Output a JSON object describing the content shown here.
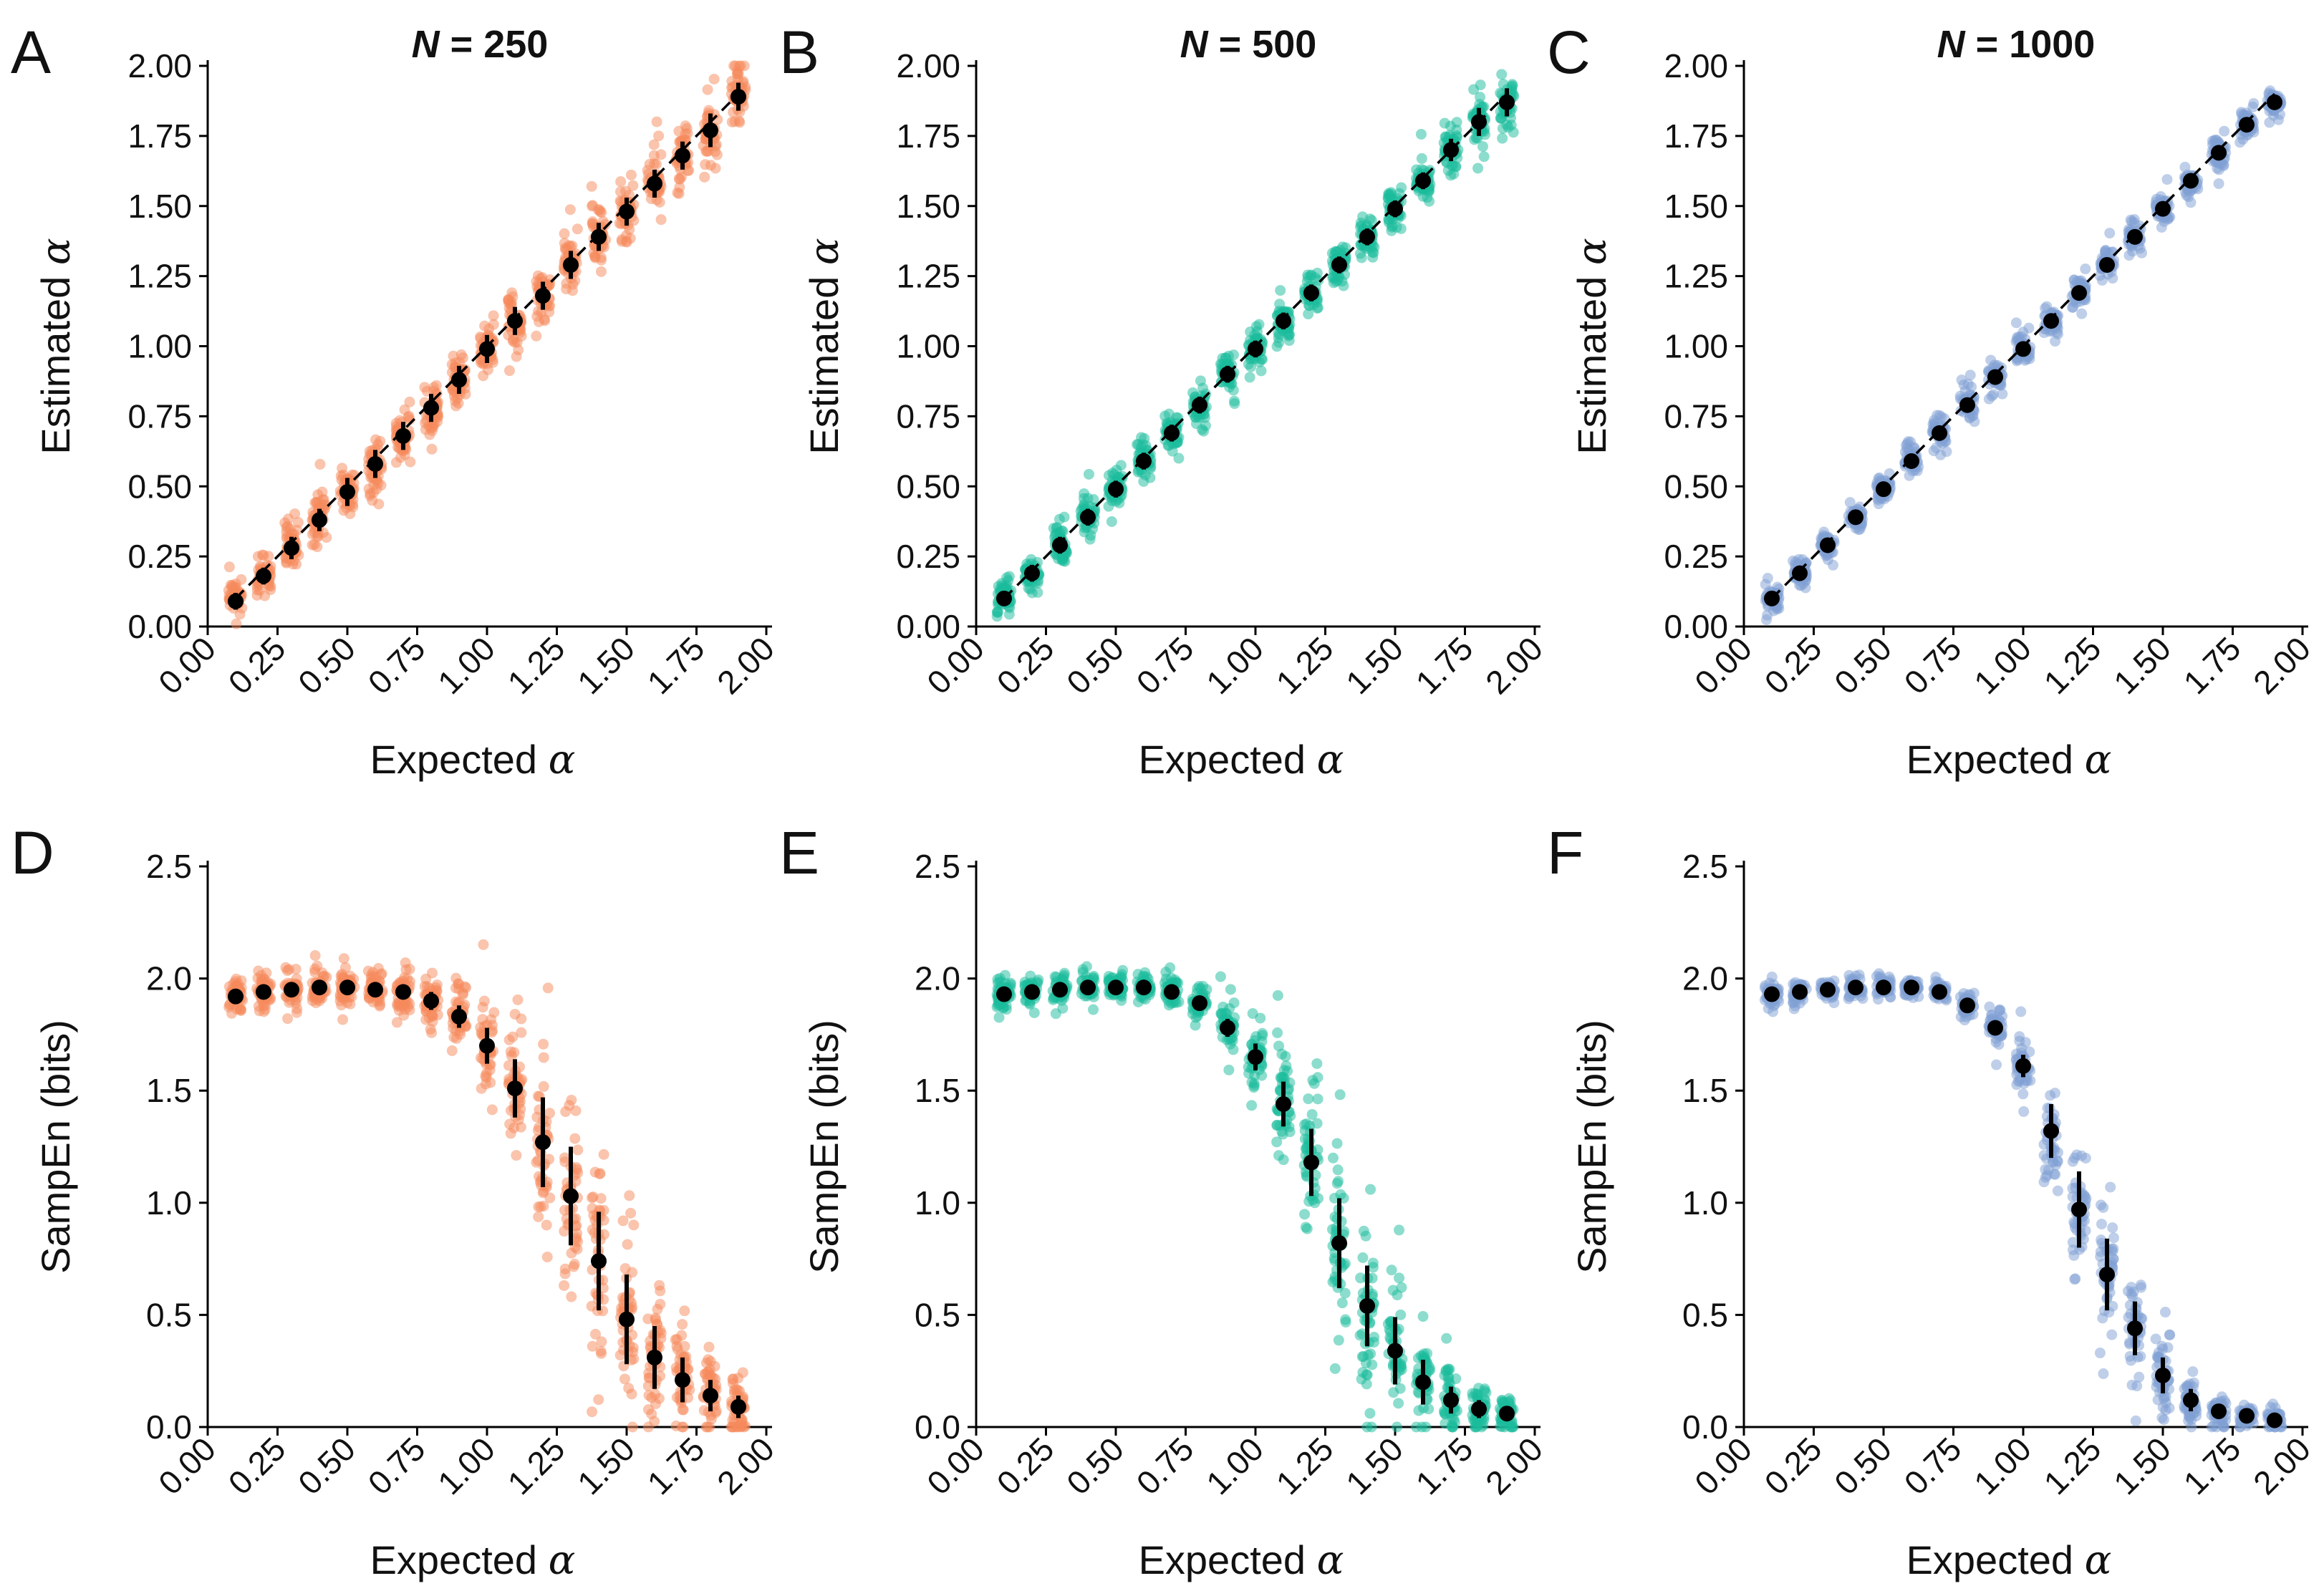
{
  "figure": {
    "panel_letters": [
      "A",
      "B",
      "C",
      "D",
      "E",
      "F"
    ]
  },
  "palette": {
    "N250": "#F58A5C",
    "N500": "#1ABC9C",
    "N1000": "#7F9FD4",
    "mean_marker": "#000000",
    "identity_line": "#000000"
  },
  "chart_data": [
    {
      "id": "A",
      "type": "scatter",
      "title": "N = 250",
      "title_var": "N",
      "title_rest": " = 250",
      "xlabel": "Expected α",
      "xlabel_text": "Expected ",
      "xlabel_symbol": "α",
      "ylabel": "Estimated α",
      "ylabel_text": "Estimated ",
      "ylabel_symbol": "α",
      "xlim": [
        0,
        2
      ],
      "ylim": [
        0,
        2
      ],
      "xticks": [
        "0.00",
        "0.25",
        "0.50",
        "0.75",
        "1.00",
        "1.25",
        "1.50",
        "1.75",
        "2.00"
      ],
      "yticks": [
        "0.00",
        "0.25",
        "0.50",
        "0.75",
        "1.00",
        "1.25",
        "1.50",
        "1.75",
        "2.00"
      ],
      "color": "#F58A5C",
      "identity_line": true,
      "x": [
        0.1,
        0.2,
        0.3,
        0.4,
        0.5,
        0.6,
        0.7,
        0.8,
        0.9,
        1.0,
        1.1,
        1.2,
        1.3,
        1.4,
        1.5,
        1.6,
        1.7,
        1.8,
        1.9
      ],
      "mean": [
        0.09,
        0.18,
        0.28,
        0.38,
        0.48,
        0.58,
        0.68,
        0.78,
        0.88,
        0.99,
        1.09,
        1.18,
        1.29,
        1.39,
        1.48,
        1.58,
        1.68,
        1.77,
        1.89
      ],
      "sd": [
        0.03,
        0.03,
        0.04,
        0.04,
        0.05,
        0.05,
        0.05,
        0.05,
        0.05,
        0.05,
        0.05,
        0.05,
        0.05,
        0.05,
        0.05,
        0.05,
        0.05,
        0.06,
        0.05
      ],
      "spread": [
        0.08,
        0.08,
        0.09,
        0.09,
        0.09,
        0.1,
        0.1,
        0.1,
        0.1,
        0.1,
        0.1,
        0.1,
        0.1,
        0.1,
        0.1,
        0.1,
        0.1,
        0.12,
        0.12
      ]
    },
    {
      "id": "B",
      "type": "scatter",
      "title": "N = 500",
      "title_var": "N",
      "title_rest": " = 500",
      "xlabel": "Expected α",
      "xlabel_text": "Expected ",
      "xlabel_symbol": "α",
      "ylabel": "Estimated α",
      "ylabel_text": "Estimated ",
      "ylabel_symbol": "α",
      "xlim": [
        0,
        2
      ],
      "ylim": [
        0,
        2
      ],
      "xticks": [
        "0.00",
        "0.25",
        "0.50",
        "0.75",
        "1.00",
        "1.25",
        "1.50",
        "1.75",
        "2.00"
      ],
      "yticks": [
        "0.00",
        "0.25",
        "0.50",
        "0.75",
        "1.00",
        "1.25",
        "1.50",
        "1.75",
        "2.00"
      ],
      "color": "#1ABC9C",
      "identity_line": true,
      "x": [
        0.1,
        0.2,
        0.3,
        0.4,
        0.5,
        0.6,
        0.7,
        0.8,
        0.9,
        1.0,
        1.1,
        1.2,
        1.3,
        1.4,
        1.5,
        1.6,
        1.7,
        1.8,
        1.9
      ],
      "mean": [
        0.1,
        0.19,
        0.29,
        0.39,
        0.49,
        0.59,
        0.69,
        0.79,
        0.9,
        0.99,
        1.09,
        1.19,
        1.29,
        1.39,
        1.49,
        1.59,
        1.7,
        1.8,
        1.87
      ],
      "sd": [
        0.02,
        0.03,
        0.03,
        0.03,
        0.03,
        0.03,
        0.03,
        0.03,
        0.03,
        0.03,
        0.03,
        0.03,
        0.03,
        0.03,
        0.03,
        0.03,
        0.04,
        0.05,
        0.05
      ],
      "spread": [
        0.06,
        0.06,
        0.07,
        0.07,
        0.07,
        0.07,
        0.07,
        0.07,
        0.07,
        0.07,
        0.07,
        0.07,
        0.07,
        0.07,
        0.07,
        0.07,
        0.1,
        0.12,
        0.1
      ]
    },
    {
      "id": "C",
      "type": "scatter",
      "title": "N = 1000",
      "title_var": "N",
      "title_rest": " = 1000",
      "xlabel": "Expected α",
      "xlabel_text": "Expected ",
      "xlabel_symbol": "α",
      "ylabel": "Estimated α",
      "ylabel_text": "Estimated ",
      "ylabel_symbol": "α",
      "xlim": [
        0,
        2
      ],
      "ylim": [
        0,
        2
      ],
      "xticks": [
        "0.00",
        "0.25",
        "0.50",
        "0.75",
        "1.00",
        "1.25",
        "1.50",
        "1.75",
        "2.00"
      ],
      "yticks": [
        "0.00",
        "0.25",
        "0.50",
        "0.75",
        "1.00",
        "1.25",
        "1.50",
        "1.75",
        "2.00"
      ],
      "color": "#7F9FD4",
      "identity_line": true,
      "x": [
        0.1,
        0.2,
        0.3,
        0.4,
        0.5,
        0.6,
        0.7,
        0.8,
        0.9,
        1.0,
        1.1,
        1.2,
        1.3,
        1.4,
        1.5,
        1.6,
        1.7,
        1.8,
        1.9
      ],
      "mean": [
        0.1,
        0.19,
        0.29,
        0.39,
        0.49,
        0.59,
        0.69,
        0.79,
        0.89,
        0.99,
        1.09,
        1.19,
        1.29,
        1.39,
        1.49,
        1.59,
        1.69,
        1.79,
        1.87
      ],
      "sd": [
        0.02,
        0.02,
        0.02,
        0.02,
        0.02,
        0.02,
        0.02,
        0.02,
        0.02,
        0.02,
        0.02,
        0.02,
        0.02,
        0.02,
        0.02,
        0.02,
        0.02,
        0.02,
        0.02
      ],
      "spread": [
        0.05,
        0.05,
        0.05,
        0.05,
        0.05,
        0.05,
        0.05,
        0.05,
        0.05,
        0.05,
        0.05,
        0.05,
        0.05,
        0.05,
        0.05,
        0.05,
        0.05,
        0.05,
        0.05
      ]
    },
    {
      "id": "D",
      "type": "scatter",
      "title": "",
      "xlabel": "Expected α",
      "xlabel_text": "Expected ",
      "xlabel_symbol": "α",
      "ylabel": "SampEn (bits)",
      "ylabel_text": "SampEn (bits)",
      "ylabel_symbol": "",
      "xlim": [
        0,
        2
      ],
      "ylim": [
        0,
        2.5
      ],
      "xticks": [
        "0.00",
        "0.25",
        "0.50",
        "0.75",
        "1.00",
        "1.25",
        "1.50",
        "1.75",
        "2.00"
      ],
      "yticks": [
        "0.0",
        "0.5",
        "1.0",
        "1.5",
        "2.0",
        "2.5"
      ],
      "color": "#F58A5C",
      "identity_line": false,
      "x": [
        0.1,
        0.2,
        0.3,
        0.4,
        0.5,
        0.6,
        0.7,
        0.8,
        0.9,
        1.0,
        1.1,
        1.2,
        1.3,
        1.4,
        1.5,
        1.6,
        1.7,
        1.8,
        1.9
      ],
      "mean": [
        1.92,
        1.94,
        1.95,
        1.96,
        1.96,
        1.95,
        1.94,
        1.9,
        1.83,
        1.7,
        1.51,
        1.27,
        1.03,
        0.74,
        0.48,
        0.31,
        0.21,
        0.14,
        0.09
      ],
      "sd": [
        0.03,
        0.03,
        0.03,
        0.03,
        0.03,
        0.03,
        0.03,
        0.04,
        0.05,
        0.08,
        0.13,
        0.2,
        0.22,
        0.22,
        0.2,
        0.14,
        0.1,
        0.07,
        0.05
      ],
      "spread": [
        0.08,
        0.08,
        0.08,
        0.08,
        0.08,
        0.08,
        0.1,
        0.1,
        0.14,
        0.2,
        0.3,
        0.4,
        0.45,
        0.45,
        0.4,
        0.3,
        0.25,
        0.18,
        0.14
      ]
    },
    {
      "id": "E",
      "type": "scatter",
      "title": "",
      "xlabel": "Expected α",
      "xlabel_text": "Expected ",
      "xlabel_symbol": "α",
      "ylabel": "SampEn (bits)",
      "ylabel_text": "SampEn (bits)",
      "ylabel_symbol": "",
      "xlim": [
        0,
        2
      ],
      "ylim": [
        0,
        2.5
      ],
      "xticks": [
        "0.00",
        "0.25",
        "0.50",
        "0.75",
        "1.00",
        "1.25",
        "1.50",
        "1.75",
        "2.00"
      ],
      "yticks": [
        "0.0",
        "0.5",
        "1.0",
        "1.5",
        "2.0",
        "2.5"
      ],
      "color": "#1ABC9C",
      "identity_line": false,
      "x": [
        0.1,
        0.2,
        0.3,
        0.4,
        0.5,
        0.6,
        0.7,
        0.8,
        0.9,
        1.0,
        1.1,
        1.2,
        1.3,
        1.4,
        1.5,
        1.6,
        1.7,
        1.8,
        1.9
      ],
      "mean": [
        1.93,
        1.94,
        1.95,
        1.96,
        1.96,
        1.96,
        1.94,
        1.89,
        1.78,
        1.65,
        1.44,
        1.18,
        0.82,
        0.54,
        0.34,
        0.2,
        0.12,
        0.08,
        0.06
      ],
      "sd": [
        0.02,
        0.02,
        0.02,
        0.02,
        0.02,
        0.02,
        0.02,
        0.03,
        0.04,
        0.06,
        0.1,
        0.15,
        0.2,
        0.18,
        0.15,
        0.1,
        0.06,
        0.04,
        0.03
      ],
      "spread": [
        0.06,
        0.06,
        0.06,
        0.06,
        0.06,
        0.06,
        0.06,
        0.07,
        0.1,
        0.15,
        0.25,
        0.32,
        0.4,
        0.35,
        0.3,
        0.2,
        0.15,
        0.12,
        0.1
      ]
    },
    {
      "id": "F",
      "type": "scatter",
      "title": "",
      "xlabel": "Expected α",
      "xlabel_text": "Expected ",
      "xlabel_symbol": "α",
      "ylabel": "SampEn (bits)",
      "ylabel_text": "SampEn (bits)",
      "ylabel_symbol": "",
      "xlim": [
        0,
        2
      ],
      "ylim": [
        0,
        2.5
      ],
      "xticks": [
        "0.00",
        "0.25",
        "0.50",
        "0.75",
        "1.00",
        "1.25",
        "1.50",
        "1.75",
        "2.00"
      ],
      "yticks": [
        "0.0",
        "0.5",
        "1.0",
        "1.5",
        "2.0",
        "2.5"
      ],
      "color": "#7F9FD4",
      "identity_line": false,
      "x": [
        0.1,
        0.2,
        0.3,
        0.4,
        0.5,
        0.6,
        0.7,
        0.8,
        0.9,
        1.0,
        1.1,
        1.2,
        1.3,
        1.4,
        1.5,
        1.6,
        1.7,
        1.8,
        1.9
      ],
      "mean": [
        1.93,
        1.94,
        1.95,
        1.96,
        1.96,
        1.96,
        1.94,
        1.88,
        1.78,
        1.61,
        1.32,
        0.97,
        0.68,
        0.44,
        0.23,
        0.12,
        0.07,
        0.05,
        0.03
      ],
      "sd": [
        0.02,
        0.02,
        0.02,
        0.02,
        0.02,
        0.02,
        0.02,
        0.02,
        0.03,
        0.05,
        0.12,
        0.17,
        0.16,
        0.12,
        0.08,
        0.05,
        0.03,
        0.02,
        0.02
      ],
      "spread": [
        0.05,
        0.05,
        0.05,
        0.05,
        0.05,
        0.05,
        0.05,
        0.06,
        0.08,
        0.12,
        0.25,
        0.3,
        0.3,
        0.25,
        0.15,
        0.1,
        0.07,
        0.05,
        0.05
      ]
    }
  ]
}
